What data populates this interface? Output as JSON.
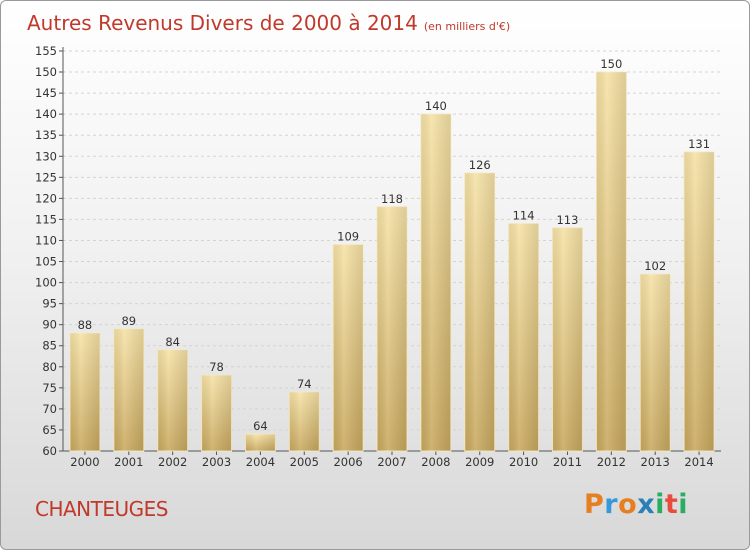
{
  "header": {
    "title": "Autres Revenus Divers de 2000 à 2014",
    "unit": "(en milliers d'€)"
  },
  "footer": {
    "place": "CHANTEUGES",
    "brand_letters": [
      "P",
      "r",
      "o",
      "x",
      "i",
      "t",
      "i"
    ],
    "brand_colors": [
      "#e67e22",
      "#3498db",
      "#e67e22",
      "#2980b9",
      "#27ae60",
      "#e74c3c",
      "#27ae60"
    ]
  },
  "colors": {
    "title": "#c0392b",
    "bar_light": "#f5dea0",
    "bar_dark": "#c4a35a"
  },
  "chart_data": {
    "type": "bar",
    "title": "Autres Revenus Divers de 2000 à 2014",
    "categories": [
      "2000",
      "2001",
      "2002",
      "2003",
      "2004",
      "2005",
      "2006",
      "2007",
      "2008",
      "2009",
      "2010",
      "2011",
      "2012",
      "2013",
      "2014"
    ],
    "values": [
      88,
      89,
      84,
      78,
      64,
      74,
      109,
      118,
      140,
      126,
      114,
      113,
      150,
      102,
      131
    ],
    "ylim": [
      60,
      155
    ],
    "yticks": [
      60,
      65,
      70,
      75,
      80,
      85,
      90,
      95,
      100,
      105,
      110,
      115,
      120,
      125,
      130,
      135,
      140,
      145,
      150,
      155
    ],
    "grid": true
  }
}
